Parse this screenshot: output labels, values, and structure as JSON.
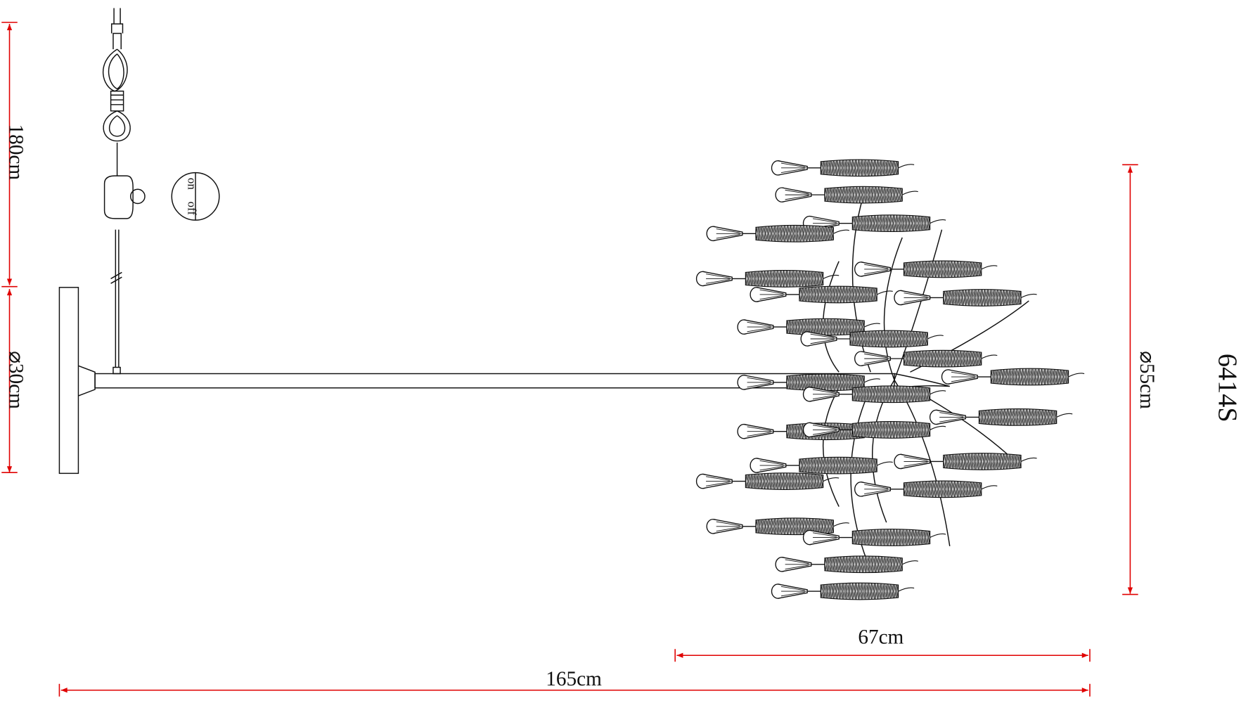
{
  "dimensions": {
    "cord_length": "180cm",
    "base_diameter": "⌀30cm",
    "shade_diameter": "⌀55cm",
    "shade_width": "67cm",
    "total_length": "165cm"
  },
  "switch": {
    "on": "on",
    "off": "off"
  },
  "model": "6414S"
}
